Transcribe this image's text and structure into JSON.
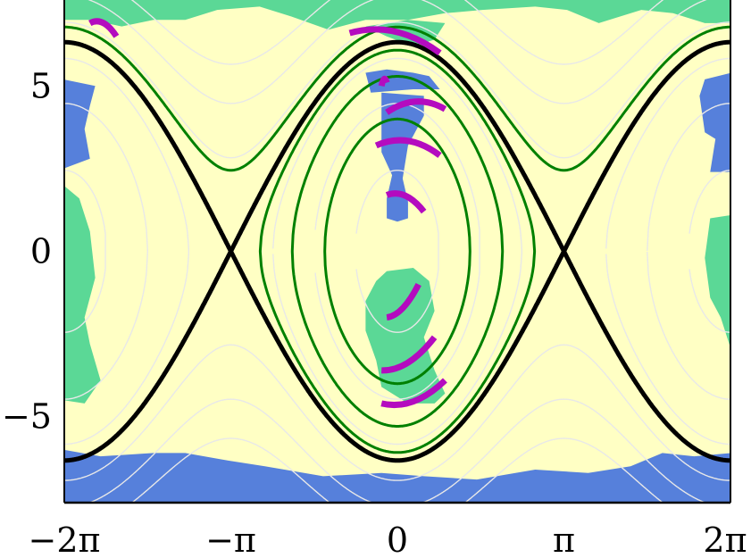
{
  "chart_data": {
    "type": "heatmap",
    "title": "",
    "xlabel": "",
    "ylabel": "",
    "xlim": [
      -6.2832,
      6.2832
    ],
    "ylim": [
      -7.6,
      7.6
    ],
    "grid": false,
    "legend": "none",
    "x_ticks": [
      {
        "value": -6.2832,
        "label": "−2π"
      },
      {
        "value": -3.1416,
        "label": "−π"
      },
      {
        "value": 0,
        "label": "0"
      },
      {
        "value": 3.1416,
        "label": "π"
      },
      {
        "value": 6.2832,
        "label": "2π"
      }
    ],
    "y_ticks": [
      {
        "value": 5,
        "label": "5"
      },
      {
        "value": 0,
        "label": "0"
      },
      {
        "value": -5,
        "label": "−5"
      }
    ],
    "colors": {
      "background": "#ffffc4",
      "region_green": "#5bd896",
      "region_blue": "#5680db",
      "separatrix": "#000000",
      "trajectory": "#008000",
      "arc": "#b40bbf",
      "contour": "#e8e8e8"
    },
    "separatrix": {
      "energy": 20
    },
    "trajectories": [
      {
        "type": "open",
        "energy": 23.0
      },
      {
        "type": "closed",
        "energy": 18.5
      },
      {
        "type": "closed",
        "energy": 14.0
      },
      {
        "type": "closed",
        "energy": 8.0
      }
    ],
    "contour_levels": [
      -17,
      -10,
      -3,
      3,
      10,
      17,
      24,
      30,
      36
    ],
    "arcs": [
      {
        "x": [
          -5.8,
          -5.3
        ],
        "y": [
          6.9,
          6.5
        ]
      },
      {
        "x": [
          -0.9,
          0.8
        ],
        "y": [
          6.6,
          6.0
        ]
      },
      {
        "x": [
          -0.3,
          -0.2
        ],
        "y": [
          5.0,
          5.1
        ]
      },
      {
        "x": [
          -0.2,
          0.9
        ],
        "y": [
          4.2,
          4.3
        ]
      },
      {
        "x": [
          -0.4,
          0.8
        ],
        "y": [
          3.2,
          2.9
        ]
      },
      {
        "x": [
          -0.2,
          0.5
        ],
        "y": [
          1.7,
          1.2
        ]
      },
      {
        "x": [
          -0.2,
          0.4
        ],
        "y": [
          -2.0,
          -1.0
        ]
      },
      {
        "x": [
          -0.3,
          0.7
        ],
        "y": [
          -3.6,
          -2.6
        ]
      },
      {
        "x": [
          -0.3,
          0.9
        ],
        "y": [
          -4.6,
          -3.9
        ]
      }
    ],
    "regions": [
      {
        "color": "green",
        "poly": [
          [
            -6.3,
            7.6
          ],
          [
            6.3,
            7.6
          ],
          [
            6.3,
            6.9
          ],
          [
            5.8,
            6.9
          ],
          [
            5.2,
            7.2
          ],
          [
            4.6,
            7.3
          ],
          [
            3.8,
            6.9
          ],
          [
            3.2,
            7.3
          ],
          [
            2.6,
            7.4
          ],
          [
            1.6,
            7.3
          ],
          [
            0.9,
            7.2
          ],
          [
            0.2,
            7.0
          ],
          [
            -0.6,
            7.0
          ],
          [
            -1.3,
            6.7
          ],
          [
            -2.0,
            7.1
          ],
          [
            -2.6,
            7.4
          ],
          [
            -3.4,
            7.3
          ],
          [
            -4.0,
            7.0
          ],
          [
            -4.6,
            7.0
          ],
          [
            -5.2,
            6.8
          ],
          [
            -5.8,
            7.0
          ],
          [
            -6.3,
            7.0
          ]
        ]
      },
      {
        "color": "green",
        "poly": [
          [
            -0.6,
            6.8
          ],
          [
            -0.2,
            6.5
          ],
          [
            0.3,
            6.2
          ],
          [
            0.7,
            6.4
          ],
          [
            0.9,
            6.9
          ],
          [
            0.2,
            7.0
          ]
        ]
      },
      {
        "color": "green",
        "poly": [
          [
            -6.3,
            2.0
          ],
          [
            -6.0,
            1.6
          ],
          [
            -5.8,
            0.6
          ],
          [
            -5.7,
            -0.8
          ],
          [
            -5.9,
            -2.0
          ],
          [
            -5.8,
            -2.8
          ],
          [
            -5.6,
            -3.9
          ],
          [
            -5.9,
            -4.6
          ],
          [
            -6.3,
            -4.5
          ]
        ]
      },
      {
        "color": "green",
        "poly": [
          [
            6.3,
            -3.0
          ],
          [
            6.1,
            -2.0
          ],
          [
            5.9,
            -1.4
          ],
          [
            5.8,
            -0.2
          ],
          [
            5.9,
            1.0
          ],
          [
            6.3,
            1.1
          ]
        ]
      },
      {
        "color": "green",
        "poly": [
          [
            -0.2,
            -0.6
          ],
          [
            0.3,
            -0.5
          ],
          [
            0.6,
            -0.9
          ],
          [
            0.7,
            -1.8
          ],
          [
            0.5,
            -2.6
          ],
          [
            0.6,
            -3.1
          ],
          [
            0.7,
            -3.6
          ],
          [
            0.9,
            -4.3
          ],
          [
            0.7,
            -4.6
          ],
          [
            0.2,
            -4.6
          ],
          [
            -0.3,
            -4.1
          ],
          [
            -0.4,
            -3.3
          ],
          [
            -0.6,
            -2.4
          ],
          [
            -0.6,
            -1.5
          ],
          [
            -0.4,
            -0.9
          ]
        ]
      },
      {
        "color": "blue",
        "poly": [
          [
            -6.3,
            -6.0
          ],
          [
            -5.6,
            -6.2
          ],
          [
            -4.6,
            -6.1
          ],
          [
            -4.0,
            -6.1
          ],
          [
            -3.3,
            -6.3
          ],
          [
            -2.5,
            -6.5
          ],
          [
            -1.4,
            -6.8
          ],
          [
            -0.3,
            -6.7
          ],
          [
            0.5,
            -6.8
          ],
          [
            1.5,
            -6.9
          ],
          [
            2.6,
            -6.6
          ],
          [
            3.6,
            -6.7
          ],
          [
            4.4,
            -6.5
          ],
          [
            5.0,
            -6.1
          ],
          [
            5.6,
            -6.2
          ],
          [
            6.3,
            -6.1
          ],
          [
            6.3,
            -7.6
          ],
          [
            -6.3,
            -7.6
          ]
        ]
      },
      {
        "color": "blue",
        "poly": [
          [
            -0.3,
            4.8
          ],
          [
            0.5,
            4.7
          ],
          [
            0.5,
            4.1
          ],
          [
            0.2,
            3.2
          ],
          [
            0.1,
            2.2
          ],
          [
            0.2,
            1.5
          ],
          [
            0.2,
            1.0
          ],
          [
            0.0,
            0.9
          ],
          [
            -0.2,
            1.0
          ],
          [
            -0.2,
            1.6
          ],
          [
            -0.1,
            2.3
          ],
          [
            -0.3,
            3.0
          ],
          [
            -0.3,
            4.0
          ]
        ]
      },
      {
        "color": "blue",
        "poly": [
          [
            -0.6,
            5.4
          ],
          [
            -0.2,
            5.5
          ],
          [
            0.3,
            5.4
          ],
          [
            0.6,
            5.3
          ],
          [
            0.8,
            4.9
          ],
          [
            0.3,
            4.9
          ],
          [
            -0.5,
            4.8
          ]
        ]
      },
      {
        "color": "blue",
        "poly": [
          [
            -6.3,
            5.2
          ],
          [
            -5.7,
            5.0
          ],
          [
            -5.8,
            4.4
          ],
          [
            -5.9,
            3.7
          ],
          [
            -5.8,
            2.8
          ],
          [
            -6.3,
            2.5
          ]
        ]
      },
      {
        "color": "blue",
        "poly": [
          [
            6.3,
            5.4
          ],
          [
            5.8,
            5.2
          ],
          [
            5.7,
            4.7
          ],
          [
            5.8,
            3.6
          ],
          [
            6.0,
            3.4
          ],
          [
            5.9,
            2.4
          ],
          [
            6.3,
            2.4
          ]
        ]
      }
    ]
  }
}
